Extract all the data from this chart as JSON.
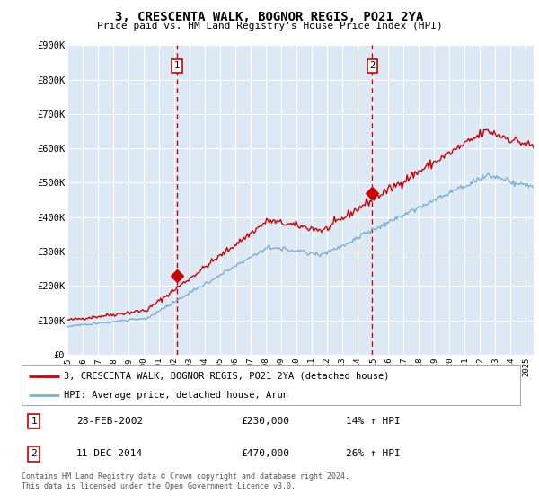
{
  "title": "3, CRESCENTA WALK, BOGNOR REGIS, PO21 2YA",
  "subtitle": "Price paid vs. HM Land Registry's House Price Index (HPI)",
  "red_color": "#cc0000",
  "blue_color": "#7aafd4",
  "bg_color": "#dce9f5",
  "grid_color": "#ffffff",
  "marker1_x": 2002.17,
  "marker1_y": 230000,
  "marker2_x": 2014.95,
  "marker2_y": 470000,
  "marker1_label": "28-FEB-2002",
  "marker1_price": "£230,000",
  "marker1_hpi": "14% ↑ HPI",
  "marker2_label": "11-DEC-2014",
  "marker2_price": "£470,000",
  "marker2_hpi": "26% ↑ HPI",
  "legend_line1": "3, CRESCENTA WALK, BOGNOR REGIS, PO21 2YA (detached house)",
  "legend_line2": "HPI: Average price, detached house, Arun",
  "footer": "Contains HM Land Registry data © Crown copyright and database right 2024.\nThis data is licensed under the Open Government Licence v3.0.",
  "ylim": [
    0,
    900000
  ],
  "yticks": [
    0,
    100000,
    200000,
    300000,
    400000,
    500000,
    600000,
    700000,
    800000,
    900000
  ],
  "ytick_labels": [
    "£0",
    "£100K",
    "£200K",
    "£300K",
    "£400K",
    "£500K",
    "£600K",
    "£700K",
    "£800K",
    "£900K"
  ],
  "xmin": 1995.0,
  "xmax": 2025.5
}
